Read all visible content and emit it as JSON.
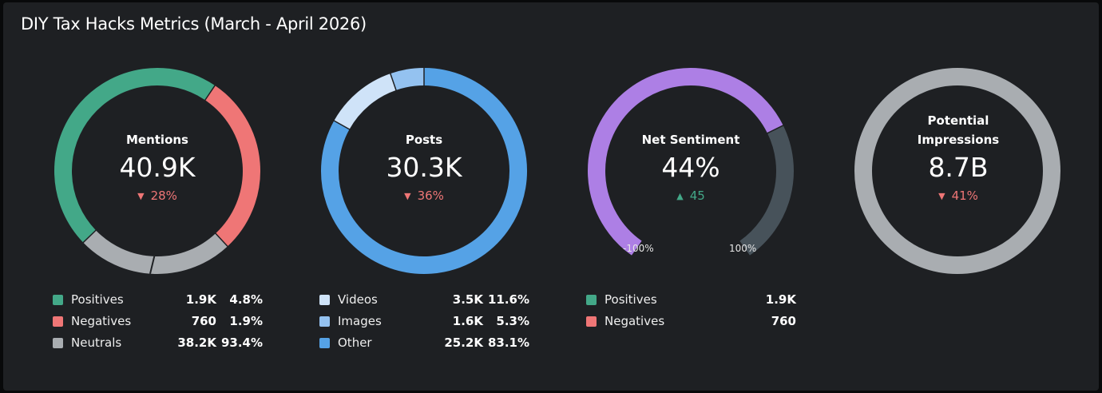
{
  "title": "DIY Tax Hacks Metrics (March - April 2026)",
  "chart_data": [
    {
      "type": "donut",
      "label": "Mentions",
      "value": "40.9K",
      "change": "28%",
      "direction": "down",
      "series": [
        {
          "name": "Positives",
          "count": "1.9K",
          "percent": "4.8%",
          "color": "#43a888"
        },
        {
          "name": "Negatives",
          "count": "760",
          "percent": "1.9%",
          "color": "#ef7676"
        },
        {
          "name": "Neutrals",
          "count": "38.2K",
          "percent": "93.4%",
          "color": "#a9adb1"
        }
      ]
    },
    {
      "type": "donut",
      "label": "Posts",
      "value": "30.3K",
      "change": "36%",
      "direction": "down",
      "series": [
        {
          "name": "Videos",
          "count": "3.5K",
          "percent": "11.6%",
          "color": "#cfe3f8"
        },
        {
          "name": "Images",
          "count": "1.6K",
          "percent": "5.3%",
          "color": "#94c2f0"
        },
        {
          "name": "Other",
          "count": "25.2K",
          "percent": "83.1%",
          "color": "#55a2e6"
        }
      ]
    },
    {
      "type": "gauge",
      "label": "Net Sentiment",
      "value": "44%",
      "change": "45",
      "direction": "up",
      "range_min_label": "-100%",
      "range_max_label": "100%",
      "level": 44,
      "series": [
        {
          "name": "Positives",
          "count": "1.9K",
          "color": "#ad7fe5"
        },
        {
          "name": "Negatives",
          "count": "760",
          "color": "#ef7676"
        }
      ]
    },
    {
      "type": "donut",
      "label": "Potential Impressions",
      "value": "8.7B",
      "change": "41%",
      "direction": "down",
      "series": [
        {
          "name": "Impressions",
          "count": "8.7B",
          "color": "#a9adb1"
        }
      ]
    }
  ],
  "colors": {
    "positive": "#43a888",
    "negative": "#ef7676",
    "neutral": "#a9adb1",
    "sentiment_fill": "#ad7fe5",
    "sentiment_track": "#47525a"
  }
}
